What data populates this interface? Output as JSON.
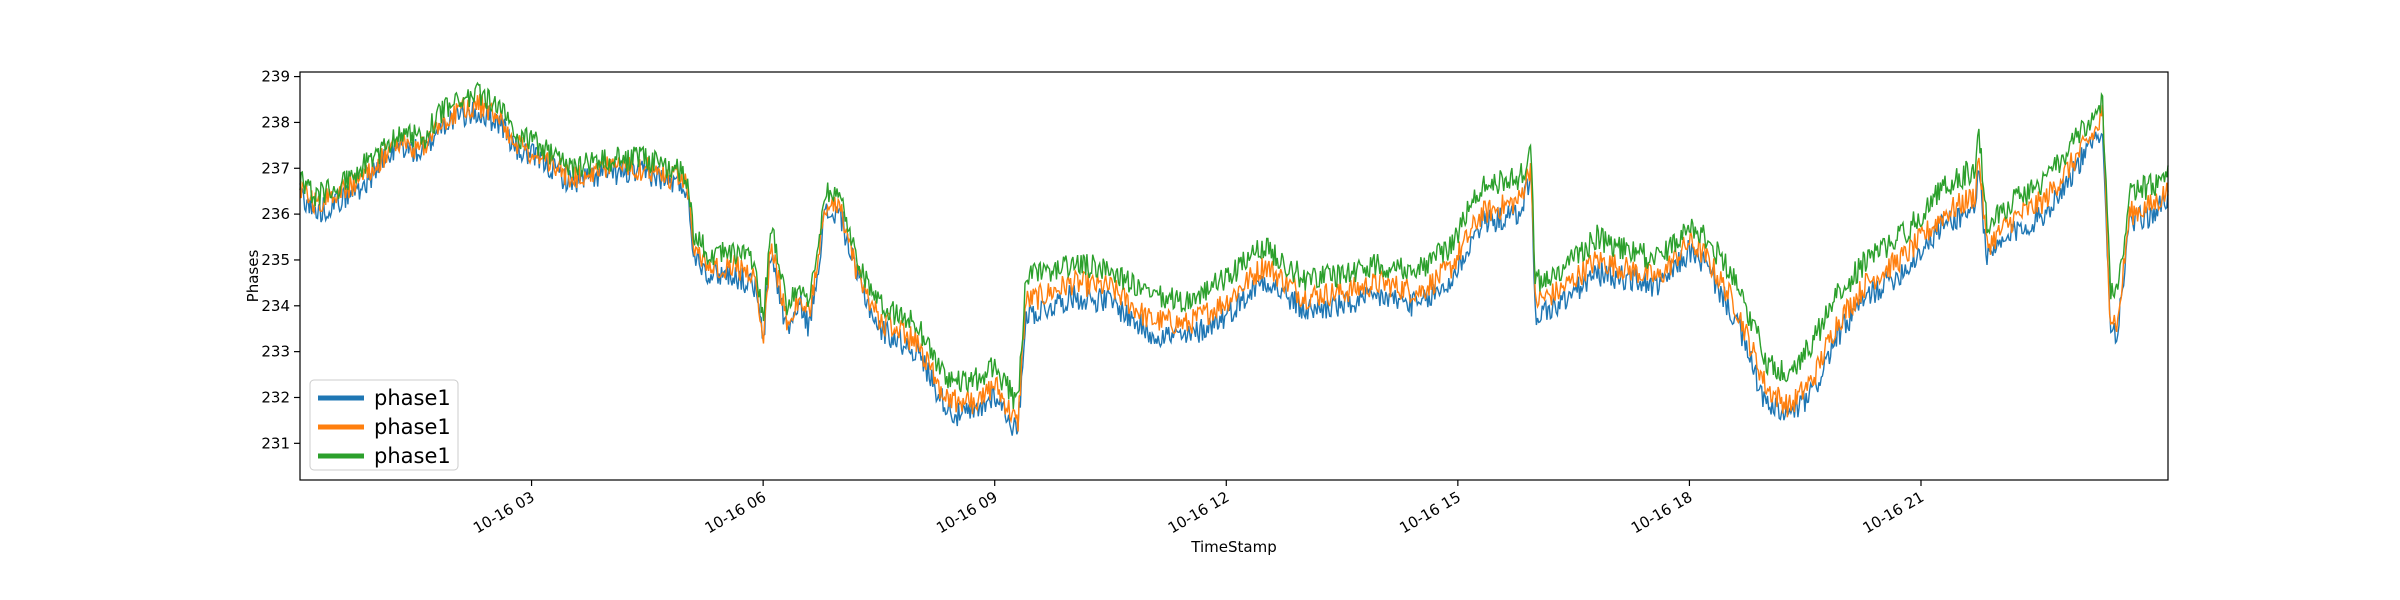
{
  "chart_data": {
    "type": "line",
    "title": "",
    "xlabel": "TimeStamp",
    "ylabel": "Phases",
    "ylim": [
      230.2,
      239.1
    ],
    "xlim_hours": [
      0.0,
      24.2
    ],
    "x_ticks": [
      {
        "hour": 3,
        "label": "10-16 03"
      },
      {
        "hour": 6,
        "label": "10-16 06"
      },
      {
        "hour": 9,
        "label": "10-16 09"
      },
      {
        "hour": 12,
        "label": "10-16 12"
      },
      {
        "hour": 15,
        "label": "10-16 15"
      },
      {
        "hour": 18,
        "label": "10-16 18"
      },
      {
        "hour": 21,
        "label": "10-16 21"
      }
    ],
    "y_ticks": [
      231,
      232,
      233,
      234,
      235,
      236,
      237,
      238,
      239
    ],
    "grid": false,
    "legend_position": "lower-left",
    "series": [
      {
        "name": "phase1",
        "color": "#1f77b4",
        "x": [
          0.0,
          0.2,
          0.5,
          0.8,
          1.0,
          1.3,
          1.6,
          1.8,
          2.0,
          2.3,
          2.6,
          2.8,
          3.1,
          3.5,
          4.0,
          4.5,
          5.0,
          5.1,
          5.3,
          5.6,
          5.9,
          6.0,
          6.1,
          6.3,
          6.5,
          6.6,
          6.8,
          7.0,
          7.2,
          7.5,
          8.0,
          8.3,
          8.5,
          8.8,
          9.0,
          9.2,
          9.3,
          9.4,
          9.6,
          10.0,
          10.5,
          11.0,
          11.5,
          12.0,
          12.5,
          13.0,
          13.5,
          14.0,
          14.5,
          14.9,
          15.3,
          15.8,
          15.95,
          16.0,
          16.3,
          16.8,
          17.2,
          17.6,
          18.0,
          18.2,
          18.6,
          19.0,
          19.3,
          19.6,
          19.9,
          20.3,
          20.8,
          21.3,
          21.7,
          21.75,
          21.85,
          22.2,
          22.6,
          23.0,
          23.3,
          23.35,
          23.45,
          23.55,
          23.7,
          24.0,
          24.2
        ],
        "values": [
          236.5,
          236.0,
          236.3,
          236.6,
          237.0,
          237.5,
          237.3,
          237.9,
          238.1,
          238.2,
          238.0,
          237.4,
          237.2,
          236.7,
          236.9,
          236.9,
          236.6,
          235.2,
          234.7,
          234.7,
          234.4,
          233.2,
          235.2,
          233.5,
          234.0,
          233.5,
          236.0,
          236.0,
          234.7,
          233.5,
          233.0,
          232.0,
          231.6,
          231.7,
          232.1,
          231.5,
          231.2,
          233.8,
          233.9,
          234.2,
          234.1,
          233.4,
          233.3,
          233.8,
          234.6,
          233.9,
          234.0,
          234.2,
          234.0,
          234.5,
          235.8,
          236.0,
          236.9,
          233.8,
          234.0,
          234.7,
          234.6,
          234.4,
          235.2,
          234.9,
          233.7,
          231.8,
          231.6,
          232.1,
          233.3,
          234.2,
          234.8,
          235.8,
          236.1,
          237.1,
          235.0,
          235.6,
          236.0,
          237.0,
          237.7,
          238.1,
          233.6,
          233.4,
          235.8,
          236.0,
          236.3
        ]
      },
      {
        "name": "phase1",
        "color": "#ff7f0e",
        "x": [
          0.0,
          0.2,
          0.5,
          0.8,
          1.0,
          1.3,
          1.6,
          1.8,
          2.0,
          2.3,
          2.6,
          2.8,
          3.1,
          3.5,
          4.0,
          4.5,
          5.0,
          5.1,
          5.3,
          5.6,
          5.9,
          6.0,
          6.1,
          6.3,
          6.5,
          6.6,
          6.8,
          7.0,
          7.2,
          7.5,
          8.0,
          8.3,
          8.5,
          8.8,
          9.0,
          9.2,
          9.3,
          9.4,
          9.6,
          10.0,
          10.5,
          11.0,
          11.5,
          12.0,
          12.5,
          13.0,
          13.5,
          14.0,
          14.5,
          14.9,
          15.3,
          15.8,
          15.95,
          16.0,
          16.3,
          16.8,
          17.2,
          17.6,
          18.0,
          18.2,
          18.6,
          19.0,
          19.3,
          19.6,
          19.9,
          20.3,
          20.8,
          21.3,
          21.7,
          21.75,
          21.85,
          22.2,
          22.6,
          23.0,
          23.3,
          23.35,
          23.45,
          23.55,
          23.7,
          24.0,
          24.2
        ],
        "values": [
          236.6,
          236.2,
          236.4,
          236.8,
          237.1,
          237.6,
          237.4,
          238.0,
          238.2,
          238.4,
          238.1,
          237.5,
          237.3,
          236.8,
          237.0,
          237.0,
          236.7,
          235.3,
          234.8,
          234.9,
          234.6,
          233.3,
          235.4,
          233.7,
          234.2,
          233.7,
          236.2,
          236.1,
          234.8,
          233.7,
          233.2,
          232.2,
          231.9,
          231.9,
          232.3,
          231.7,
          231.4,
          234.1,
          234.2,
          234.5,
          234.4,
          233.7,
          233.6,
          234.1,
          234.9,
          234.2,
          234.3,
          234.5,
          234.3,
          234.8,
          236.0,
          236.3,
          237.1,
          234.1,
          234.3,
          235.0,
          234.8,
          234.6,
          235.4,
          235.1,
          234.0,
          232.2,
          231.8,
          232.4,
          233.6,
          234.5,
          235.1,
          236.0,
          236.4,
          237.3,
          235.3,
          235.9,
          236.3,
          237.2,
          237.9,
          238.3,
          233.8,
          233.6,
          236.0,
          236.2,
          236.5
        ]
      },
      {
        "name": "phase1",
        "color": "#2ca02c",
        "x": [
          0.0,
          0.2,
          0.5,
          0.8,
          1.0,
          1.3,
          1.6,
          1.8,
          2.0,
          2.3,
          2.6,
          2.8,
          3.1,
          3.5,
          4.0,
          4.5,
          5.0,
          5.1,
          5.3,
          5.6,
          5.9,
          6.0,
          6.1,
          6.3,
          6.5,
          6.6,
          6.8,
          7.0,
          7.2,
          7.5,
          8.0,
          8.3,
          8.5,
          8.8,
          9.0,
          9.2,
          9.3,
          9.4,
          9.6,
          10.0,
          10.5,
          11.0,
          11.5,
          12.0,
          12.5,
          13.0,
          13.5,
          14.0,
          14.5,
          14.9,
          15.3,
          15.8,
          15.95,
          16.0,
          16.3,
          16.8,
          17.2,
          17.6,
          18.0,
          18.2,
          18.6,
          19.0,
          19.3,
          19.6,
          19.9,
          20.3,
          20.8,
          21.3,
          21.7,
          21.75,
          21.85,
          22.2,
          22.6,
          23.0,
          23.3,
          23.35,
          23.45,
          23.55,
          23.7,
          24.0,
          24.2
        ],
        "values": [
          236.8,
          236.4,
          236.6,
          237.0,
          237.3,
          237.8,
          237.6,
          238.2,
          238.4,
          238.6,
          238.3,
          237.7,
          237.5,
          237.0,
          237.2,
          237.2,
          236.9,
          235.6,
          235.1,
          235.2,
          234.9,
          233.6,
          235.8,
          234.0,
          234.5,
          234.0,
          236.5,
          236.4,
          235.1,
          234.0,
          233.6,
          232.6,
          232.3,
          232.4,
          232.7,
          232.1,
          231.8,
          234.6,
          234.7,
          234.9,
          234.8,
          234.2,
          234.1,
          234.6,
          235.3,
          234.6,
          234.7,
          234.9,
          234.8,
          235.3,
          236.6,
          236.8,
          237.3,
          234.5,
          234.7,
          235.5,
          235.2,
          235.0,
          235.8,
          235.5,
          234.6,
          232.8,
          232.5,
          233.2,
          234.2,
          235.0,
          235.6,
          236.6,
          237.0,
          237.8,
          235.8,
          236.3,
          236.7,
          237.6,
          238.2,
          238.5,
          234.4,
          234.2,
          236.5,
          236.6,
          236.8
        ]
      }
    ]
  }
}
